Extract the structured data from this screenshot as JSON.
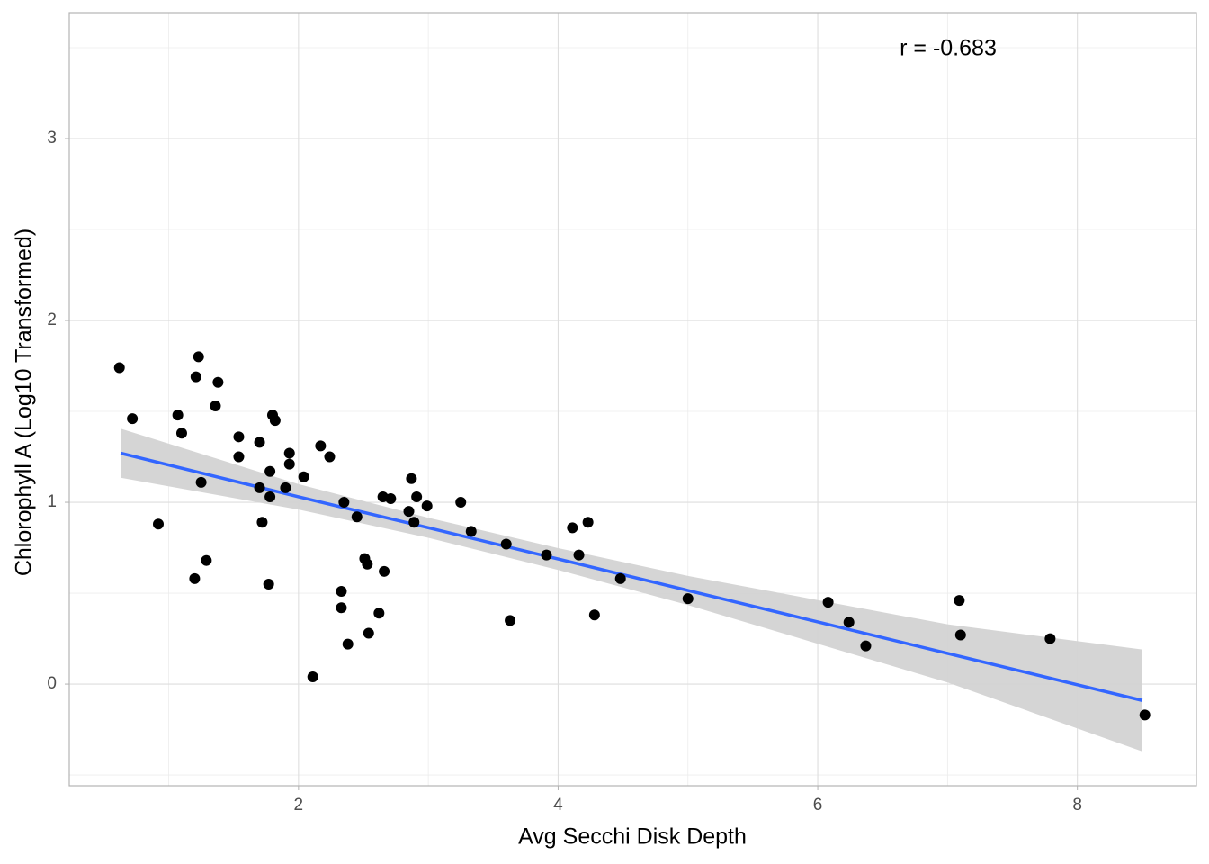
{
  "chart_data": {
    "type": "scatter",
    "x_label": "Avg Secchi Disk Depth",
    "y_label": "Chlorophyll A (Log10 Transformed)",
    "annotation": "r = -0.683",
    "color": "#000000",
    "x": [
      0.62,
      0.72,
      0.92,
      1.07,
      1.1,
      1.2,
      1.21,
      1.23,
      1.25,
      1.29,
      1.36,
      1.38,
      1.54,
      1.54,
      1.7,
      1.7,
      1.72,
      1.78,
      1.78,
      1.77,
      1.8,
      1.82,
      1.9,
      1.93,
      1.93,
      2.04,
      2.11,
      2.17,
      2.24,
      2.33,
      2.33,
      2.35,
      2.38,
      2.45,
      2.51,
      2.53,
      2.54,
      2.62,
      2.65,
      2.66,
      2.71,
      2.85,
      2.87,
      2.89,
      2.91,
      2.99,
      3.25,
      3.33,
      3.6,
      3.63,
      3.91,
      4.11,
      4.16,
      4.23,
      4.28,
      4.48,
      5.0,
      6.08,
      6.24,
      6.37,
      7.09,
      7.1,
      7.79,
      8.52
    ],
    "values": [
      1.74,
      1.46,
      0.88,
      1.48,
      1.38,
      0.58,
      1.69,
      1.8,
      1.11,
      0.68,
      1.53,
      1.66,
      1.36,
      1.25,
      1.33,
      1.08,
      0.89,
      1.17,
      1.03,
      0.55,
      1.48,
      1.45,
      1.08,
      1.27,
      1.21,
      1.14,
      0.04,
      1.31,
      1.25,
      0.51,
      0.42,
      1.0,
      0.22,
      0.92,
      0.69,
      0.66,
      0.28,
      0.39,
      1.03,
      0.62,
      1.02,
      0.95,
      1.13,
      0.89,
      1.03,
      0.98,
      1.0,
      0.84,
      0.77,
      0.35,
      0.71,
      0.86,
      0.71,
      0.89,
      0.38,
      0.58,
      0.47,
      0.45,
      0.34,
      0.21,
      0.46,
      0.27,
      0.25,
      -0.17
    ],
    "fit": {
      "color": "#3366ff",
      "band_color": "#d3d3d3",
      "x": [
        0.63,
        2,
        3,
        4,
        5,
        6,
        7,
        8.5
      ],
      "y": [
        1.27,
        1.03,
        0.86,
        0.688,
        0.515,
        0.342,
        0.169,
        -0.09
      ],
      "lower": [
        1.135,
        0.96,
        0.805,
        0.628,
        0.435,
        0.222,
        0.009,
        -0.37
      ],
      "upper": [
        1.405,
        1.1,
        0.915,
        0.748,
        0.595,
        0.462,
        0.329,
        0.19
      ]
    },
    "xlim": [
      0.234,
      8.917
    ],
    "ylim": [
      -0.559,
      3.693
    ],
    "xticks": [
      2,
      4,
      6,
      8
    ],
    "yticks": [
      0,
      1,
      2,
      3
    ],
    "grid": true
  }
}
